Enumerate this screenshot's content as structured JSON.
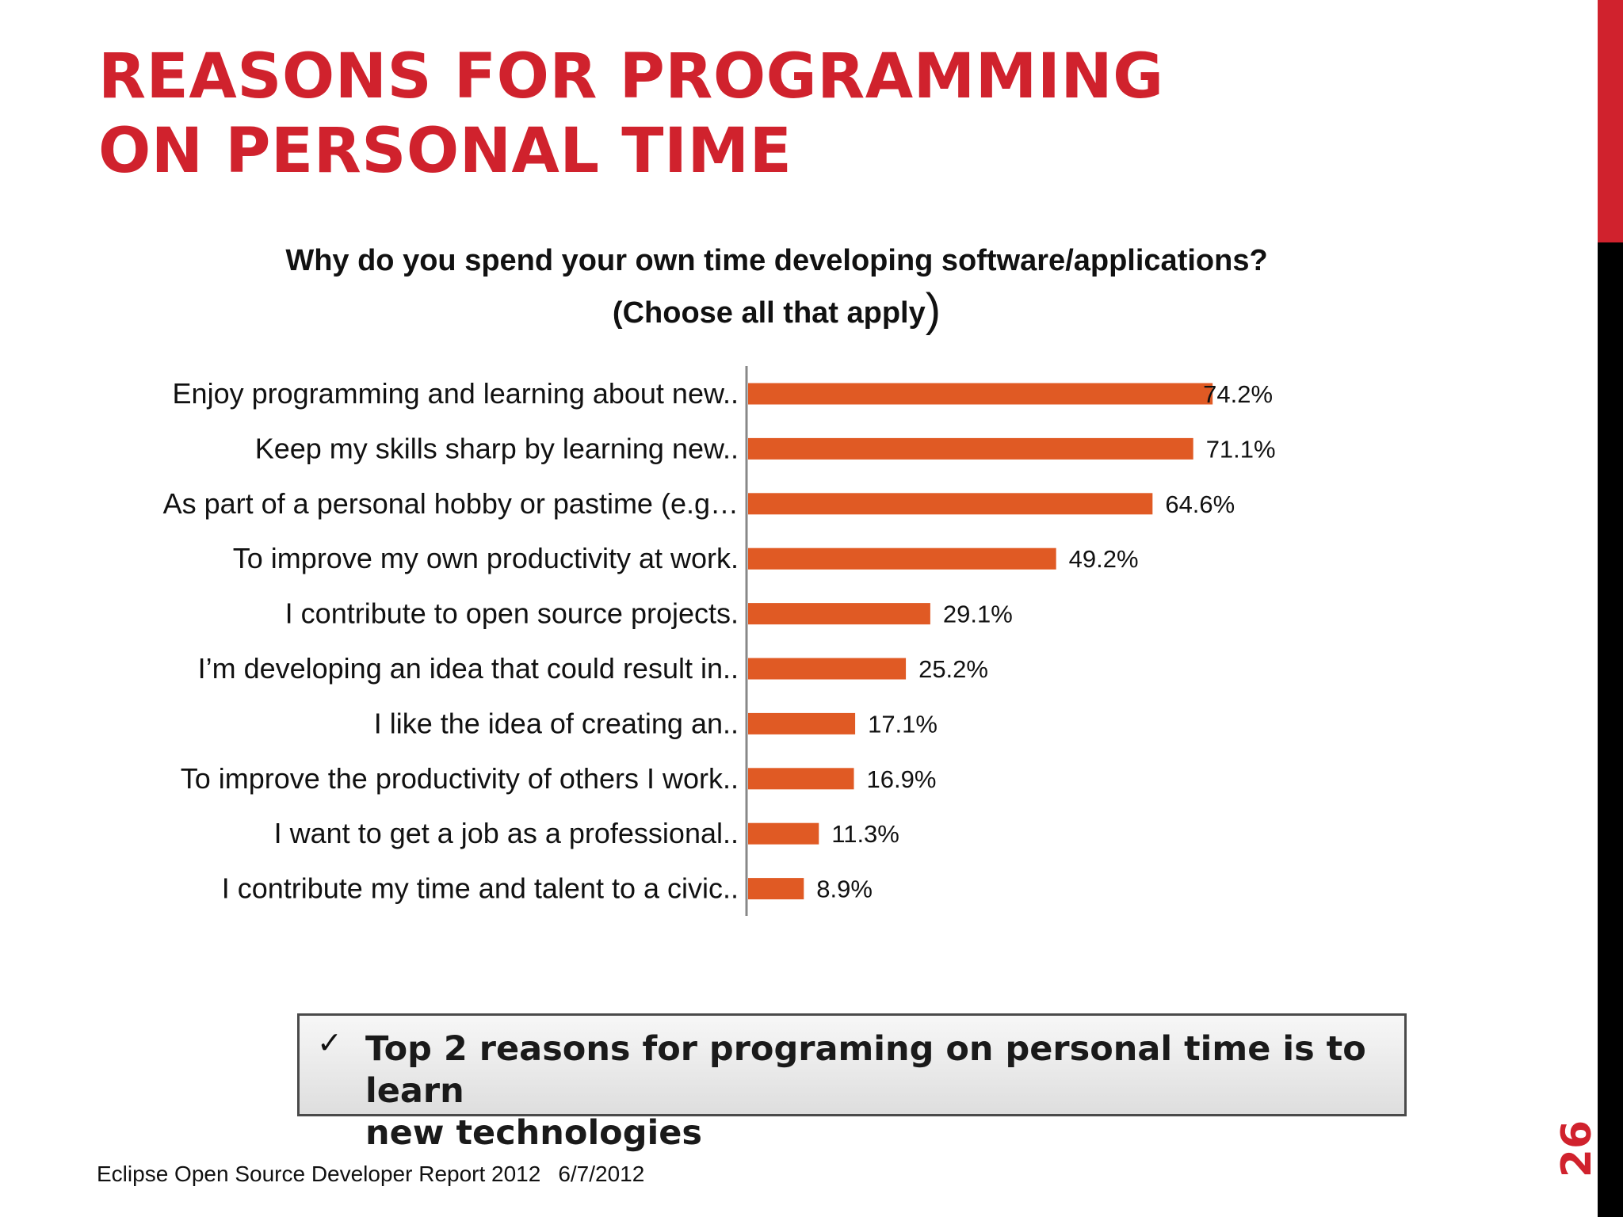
{
  "slide": {
    "title": "REASONS FOR PROGRAMMING ON PERSONAL TIME",
    "number": "26",
    "accent_color": "#d0222d"
  },
  "question": {
    "line1": "Why do you spend your own time developing software/applications?",
    "line2": "(Choose all that apply",
    "paren": ")"
  },
  "chart_data": {
    "type": "bar",
    "orientation": "horizontal",
    "categories": [
      "Enjoy programming and learning about new..",
      "Keep my skills sharp by learning new..",
      "As part of a personal hobby or pastime (e.g…",
      "To improve my own productivity at work.",
      "I contribute to open source projects.",
      "I’m developing an idea that could result in..",
      "I like the idea of creating an..",
      "To improve the productivity of others I work..",
      "I want to get a job as a professional..",
      "I contribute my time and talent to a civic.."
    ],
    "values": [
      74.2,
      71.1,
      64.6,
      49.2,
      29.1,
      25.2,
      17.1,
      16.9,
      11.3,
      8.9
    ],
    "value_labels": [
      "74.2%",
      "71.1%",
      "64.6%",
      "49.2%",
      "29.1%",
      "25.2%",
      "17.1%",
      "16.9%",
      "11.3%",
      "8.9%"
    ],
    "xlim": [
      0,
      100
    ],
    "bar_color": "#e05a24",
    "grid": false,
    "legend": "none"
  },
  "callout": {
    "check": "✓",
    "text_line1": "Top 2 reasons for programing on personal time is to learn",
    "text_line2": "new technologies"
  },
  "footer": {
    "source": "Eclipse Open Source Developer Report 2012",
    "date": "6/7/2012"
  }
}
